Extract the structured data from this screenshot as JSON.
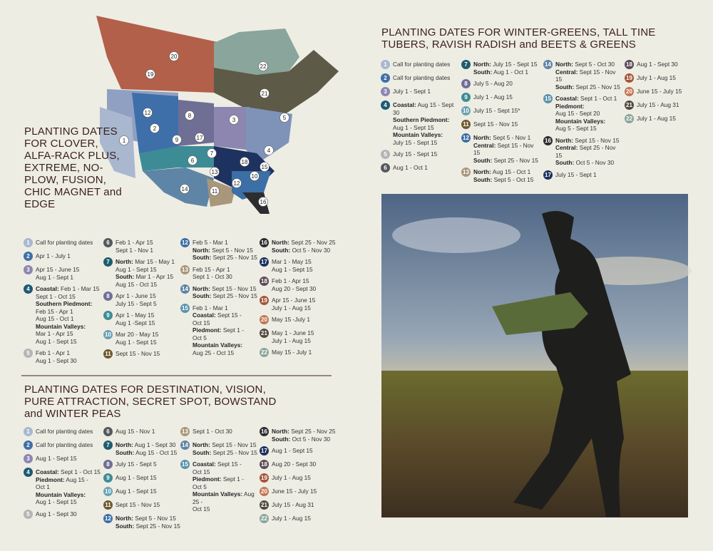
{
  "map": {
    "labels": [
      20,
      19,
      22,
      21,
      1,
      2,
      12,
      8,
      3,
      4,
      5,
      6,
      7,
      17,
      9,
      13,
      18,
      15,
      14,
      11,
      12,
      10,
      16
    ]
  },
  "zone_colors": [
    "#a9b8cf",
    "#3f6fa8",
    "#8d86b0",
    "#1f5a74",
    "#b5b5b5",
    "#55595c",
    "#1f5d6e",
    "#6f6f95",
    "#3d8c95",
    "#6aa2b3",
    "#6e5a2e",
    "#3b6fa6",
    "#a8977a",
    "#5f85a6",
    "#5a93ac",
    "#2d2d30",
    "#1e3260",
    "#5a4a55",
    "#a4553a",
    "#c27655",
    "#514a3e",
    "#8aa59b"
  ],
  "sections": [
    {
      "title": "PLANTING DATES FOR CLOVER, ALFA-RACK PLUS, EXTREME, NO-PLOW, FUSION, CHIC MAGNET and EDGE",
      "columns": [
        [
          {
            "num": 1,
            "lines": [
              {
                "t": "Call for planting dates"
              }
            ]
          },
          {
            "num": 2,
            "lines": [
              {
                "t": "Apr 1 - July 1"
              }
            ]
          },
          {
            "num": 3,
            "lines": [
              {
                "t": "Apr 15 - June 15"
              },
              {
                "t": "Aug 1 - Sept 1"
              }
            ]
          },
          {
            "num": 4,
            "lines": [
              {
                "b": "Coastal:",
                "t": "Feb 1 - Mar 15"
              },
              {
                "t": "Sept 1 - Oct 15"
              },
              {
                "b": "Southern Piedmont:"
              },
              {
                "t": "Feb 15 - Apr 1"
              },
              {
                "t": "Aug 15 - Oct 1"
              },
              {
                "b": "Mountain Valleys:"
              },
              {
                "t": "Mar 1 - Apr 15"
              },
              {
                "t": "Aug 1 - Sept 15"
              }
            ]
          },
          {
            "num": 5,
            "lines": [
              {
                "t": "Feb 1 - Apr 1"
              },
              {
                "t": "Aug 1 - Sept 30"
              }
            ]
          }
        ],
        [
          {
            "num": 6,
            "lines": [
              {
                "t": "Feb 1 - Apr 15"
              },
              {
                "t": "Sept 1 - Nov 1"
              }
            ]
          },
          {
            "num": 7,
            "lines": [
              {
                "b": "North:",
                "t": "Mar 15 - May 1"
              },
              {
                "t": "Aug 1 - Sept 15"
              },
              {
                "b": "South:",
                "t": "Mar 1 - Apr 15"
              },
              {
                "t": "Aug 15 - Oct 15"
              }
            ]
          },
          {
            "num": 8,
            "lines": [
              {
                "t": "Apr 1 - June 15"
              },
              {
                "t": "July 15 - Sept 5"
              }
            ]
          },
          {
            "num": 9,
            "lines": [
              {
                "t": "Apr 1 - May 15"
              },
              {
                "t": "Aug 1 -Sept 15"
              }
            ]
          },
          {
            "num": 10,
            "lines": [
              {
                "t": "Mar 20 - May 15"
              },
              {
                "t": "Aug 1 - Sept 15"
              }
            ]
          },
          {
            "num": 11,
            "lines": [
              {
                "t": "Sept 15 - Nov 15"
              }
            ]
          }
        ],
        [
          {
            "num": 12,
            "lines": [
              {
                "t": "Feb 5 - Mar 1"
              },
              {
                "b": "North:",
                "t": "Sept 5 - Nov 15"
              },
              {
                "b": "South:",
                "t": "Sept 25 - Nov 15"
              }
            ]
          },
          {
            "num": 13,
            "lines": [
              {
                "t": "Feb 15 - Apr 1"
              },
              {
                "t": "Sept 1 - Oct 30"
              }
            ]
          },
          {
            "num": 14,
            "lines": [
              {
                "b": "North:",
                "t": "Sept 15 - Nov 15"
              },
              {
                "b": "South:",
                "t": "Sept 25 - Nov 15"
              }
            ]
          },
          {
            "num": 15,
            "lines": [
              {
                "t": "Feb 1 - Mar 1"
              },
              {
                "b": "Coastal:",
                "t": "Sept 15 -"
              },
              {
                "t": "Oct 15"
              },
              {
                "b": "Piedmont:",
                "t": "Sept 1 -"
              },
              {
                "t": "Oct 5"
              },
              {
                "b": "Mountain Valleys:"
              },
              {
                "t": "Aug 25 - Oct 15"
              }
            ]
          }
        ],
        [
          {
            "num": 16,
            "lines": [
              {
                "b": "North:",
                "t": "Sept 25 - Nov 25"
              },
              {
                "b": "South:",
                "t": "Oct 5 - Nov 30"
              }
            ]
          },
          {
            "num": 17,
            "lines": [
              {
                "t": "Mar 1 - May 15"
              },
              {
                "t": "Aug 1 - Sept 15"
              }
            ]
          },
          {
            "num": 18,
            "lines": [
              {
                "t": "Feb 1 - Apr 15"
              },
              {
                "t": "Aug 20 - Sept 30"
              }
            ]
          },
          {
            "num": 19,
            "lines": [
              {
                "t": "Apr 15 - June 15"
              },
              {
                "t": "July 1 - Aug 15"
              }
            ]
          },
          {
            "num": 20,
            "lines": [
              {
                "t": "May 15 -July 1"
              }
            ]
          },
          {
            "num": 21,
            "lines": [
              {
                "t": "May 1 - June 15"
              },
              {
                "t": "July 1 - Aug 15"
              }
            ]
          },
          {
            "num": 22,
            "lines": [
              {
                "t": "May 15 - July 1"
              }
            ]
          }
        ]
      ]
    },
    {
      "title": "PLANTING DATES FOR DESTINATION, VISION, PURE ATTRACTION, SECRET SPOT, BOWSTAND and WINTER PEAS",
      "columns": [
        [
          {
            "num": 1,
            "lines": [
              {
                "t": "Call for planting dates"
              }
            ]
          },
          {
            "num": 2,
            "lines": [
              {
                "t": "Call for planting dates"
              }
            ]
          },
          {
            "num": 3,
            "lines": [
              {
                "t": "Aug 1 - Sept 15"
              }
            ]
          },
          {
            "num": 4,
            "lines": [
              {
                "b": "Coastal:",
                "t": "Sept 1 - Oct 15"
              },
              {
                "b": "Piedmont:",
                "t": "Aug 15 -"
              },
              {
                "t": "Oct 1"
              },
              {
                "b": "Mountain Valleys:"
              },
              {
                "t": "Aug 1 - Sept 15"
              }
            ]
          },
          {
            "num": 5,
            "lines": [
              {
                "t": "Aug 1 - Sept 30"
              }
            ]
          }
        ],
        [
          {
            "num": 6,
            "lines": [
              {
                "t": "Aug 15 - Nov 1"
              }
            ]
          },
          {
            "num": 7,
            "lines": [
              {
                "b": "North:",
                "t": "Aug 1 - Sept 30"
              },
              {
                "b": "South:",
                "t": "Aug 15 - Oct 15"
              }
            ]
          },
          {
            "num": 8,
            "lines": [
              {
                "t": "July 15 - Sept 5"
              }
            ]
          },
          {
            "num": 9,
            "lines": [
              {
                "t": "Aug 1 - Sept 15"
              }
            ]
          },
          {
            "num": 10,
            "lines": [
              {
                "t": "Aug 1 - Sept 15"
              }
            ]
          },
          {
            "num": 11,
            "lines": [
              {
                "t": "Sept 15 - Nov 15"
              }
            ]
          },
          {
            "num": 12,
            "lines": [
              {
                "b": "North:",
                "t": "Sept 5 - Nov 15"
              },
              {
                "b": "South:",
                "t": "Sept 25 - Nov 15"
              }
            ]
          }
        ],
        [
          {
            "num": 13,
            "lines": [
              {
                "t": "Sept 1 - Oct 30"
              }
            ]
          },
          {
            "num": 14,
            "lines": [
              {
                "b": "North:",
                "t": "Sept 15 - Nov 15"
              },
              {
                "b": "South:",
                "t": "Sept 25 - Nov 15"
              }
            ]
          },
          {
            "num": 15,
            "lines": [
              {
                "b": "Coastal:",
                "t": "Sept 15 -"
              },
              {
                "t": "Oct 15"
              },
              {
                "b": "Piedmont:",
                "t": "Sept 1 -"
              },
              {
                "t": "Oct 5"
              },
              {
                "b": "Mountain Valleys:",
                "t": "Aug 25 -"
              },
              {
                "t": "Oct 15"
              }
            ]
          }
        ],
        [
          {
            "num": 16,
            "lines": [
              {
                "b": "North:",
                "t": "Sept 25 - Nov 25"
              },
              {
                "b": "South:",
                "t": "Oct 5 - Nov 30"
              }
            ]
          },
          {
            "num": 17,
            "lines": [
              {
                "t": "Aug 1 - Sept 15"
              }
            ]
          },
          {
            "num": 18,
            "lines": [
              {
                "t": "Aug 20 - Sept 30"
              }
            ]
          },
          {
            "num": 19,
            "lines": [
              {
                "t": "July 1 - Aug 15"
              }
            ]
          },
          {
            "num": 20,
            "lines": [
              {
                "t": "June 15 - July 15"
              }
            ]
          },
          {
            "num": 21,
            "lines": [
              {
                "t": "July 15 - Aug 31"
              }
            ]
          },
          {
            "num": 22,
            "lines": [
              {
                "t": "July 1 - Aug 15"
              }
            ]
          }
        ]
      ]
    },
    {
      "title": "PLANTING DATES FOR WINTER-GREENS, TALL TINE TUBERS, RAVISH RADISH and BEETS & GREENS",
      "columns": [
        [
          {
            "num": 1,
            "lines": [
              {
                "t": "Call for planting dates"
              }
            ]
          },
          {
            "num": 2,
            "lines": [
              {
                "t": "Call for planting dates"
              }
            ]
          },
          {
            "num": 3,
            "lines": [
              {
                "t": "July 1 - Sept 1"
              }
            ]
          },
          {
            "num": 4,
            "lines": [
              {
                "b": "Coastal:",
                "t": "Aug 15 - Sept 30"
              },
              {
                "b": "Southern Piedmont:"
              },
              {
                "t": "Aug 1 - Sept 15"
              },
              {
                "b": "Mountain Valleys:"
              },
              {
                "t": "July 15 - Sept 15"
              }
            ]
          },
          {
            "num": 5,
            "lines": [
              {
                "t": "July 15 - Sept 15"
              }
            ]
          },
          {
            "num": 6,
            "lines": [
              {
                "t": "Aug 1 - Oct 1"
              }
            ]
          }
        ],
        [
          {
            "num": 7,
            "lines": [
              {
                "b": "North:",
                "t": "July 15 - Sept 15"
              },
              {
                "b": "South:",
                "t": "Aug 1 - Oct 1"
              }
            ]
          },
          {
            "num": 8,
            "lines": [
              {
                "t": "July 5 - Aug 20"
              }
            ]
          },
          {
            "num": 9,
            "lines": [
              {
                "t": "July 1 - Aug 15"
              }
            ]
          },
          {
            "num": 10,
            "lines": [
              {
                "t": "July 15 - Sept 15*"
              }
            ]
          },
          {
            "num": 11,
            "lines": [
              {
                "t": "Sept 15 - Nov 15"
              }
            ]
          },
          {
            "num": 12,
            "lines": [
              {
                "b": "North:",
                "t": "Sept 5 - Nov 1"
              },
              {
                "b": "Central:",
                "t": "Sept 15 - Nov 15"
              },
              {
                "b": "South:",
                "t": "Sept 25 - Nov 15"
              }
            ]
          },
          {
            "num": 13,
            "lines": [
              {
                "b": "North:",
                "t": "Aug 15 - Oct 1"
              },
              {
                "b": "South:",
                "t": "Sept 5 - Oct 15"
              }
            ]
          }
        ],
        [
          {
            "num": 14,
            "lines": [
              {
                "b": "North:",
                "t": "Sept 5 - Oct 30"
              },
              {
                "b": "Central:",
                "t": "Sept 15 - Nov 15"
              },
              {
                "b": "South:",
                "t": "Sept 25 - Nov 15"
              }
            ]
          },
          {
            "num": 15,
            "lines": [
              {
                "b": "Coastal:",
                "t": "Sept 1 - Oct 1"
              },
              {
                "b": "Piedmont:"
              },
              {
                "t": "Aug 15 - Sept 20"
              },
              {
                "b": "Mountain Valleys:"
              },
              {
                "t": "Aug 5 - Sept 15"
              }
            ]
          },
          {
            "num": 16,
            "lines": [
              {
                "b": "North:",
                "t": "Sept 15 - Nov 15"
              },
              {
                "b": "Central:",
                "t": "Sept 25 - Nov 15"
              },
              {
                "b": "South:",
                "t": "Oct 5 - Nov 30"
              }
            ]
          },
          {
            "num": 17,
            "lines": [
              {
                "t": "July 15 - Sept 1"
              }
            ]
          }
        ],
        [
          {
            "num": 18,
            "lines": [
              {
                "t": "Aug 1 - Sept 30"
              }
            ]
          },
          {
            "num": 19,
            "lines": [
              {
                "t": "July 1 - Aug 15"
              }
            ]
          },
          {
            "num": 20,
            "lines": [
              {
                "t": "June 15 - July 15"
              }
            ]
          },
          {
            "num": 21,
            "lines": [
              {
                "t": "July 15 - Aug 31"
              }
            ]
          },
          {
            "num": 22,
            "lines": [
              {
                "t": "July 1 - Aug 15"
              }
            ]
          }
        ]
      ]
    }
  ]
}
